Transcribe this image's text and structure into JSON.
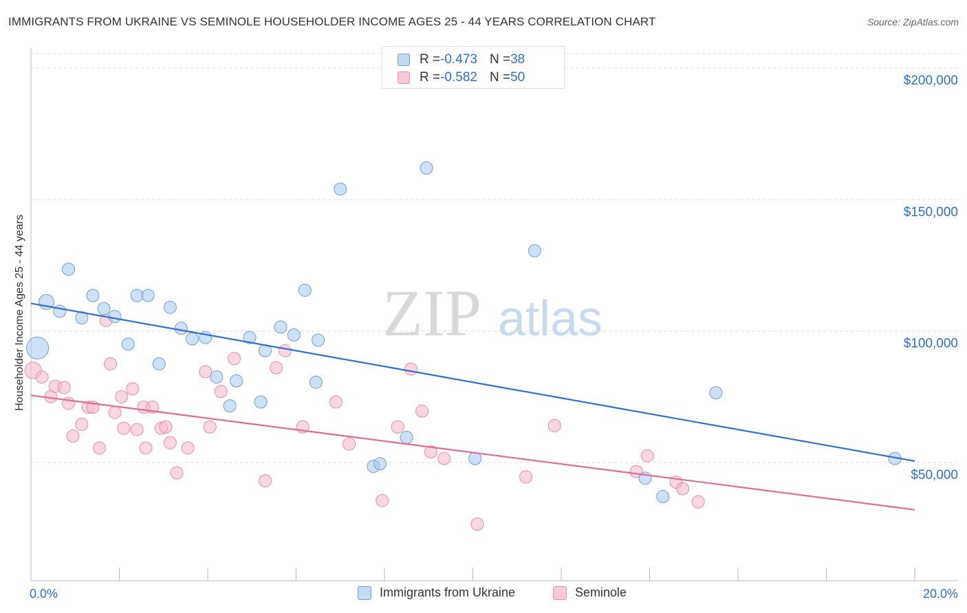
{
  "title": "IMMIGRANTS FROM UKRAINE VS SEMINOLE HOUSEHOLDER INCOME AGES 25 - 44 YEARS CORRELATION CHART",
  "source": "Source: ZipAtlas.com",
  "watermark": {
    "zip": "ZIP",
    "atlas": "atlas"
  },
  "legend": {
    "rows": [
      {
        "r_label": "R = ",
        "r_value": "-0.473",
        "n_label": "N = ",
        "n_value": "38"
      },
      {
        "r_label": "R = ",
        "r_value": "-0.582",
        "n_label": "N = ",
        "n_value": "50"
      }
    ]
  },
  "colors": {
    "ukraine_fill": "#a8c8f0",
    "ukraine_stroke": "#6a9fe0",
    "ukraine_line": "#2e6fcf",
    "seminole_fill": "#f7b6ca",
    "seminole_stroke": "#ec8aa8",
    "seminole_line": "#e06b95",
    "tick_label": "#2e6fcf",
    "grid": "#dddddd"
  },
  "chart_data": {
    "type": "scatter",
    "title": "IMMIGRANTS FROM UKRAINE VS SEMINOLE HOUSEHOLDER INCOME AGES 25 - 44 YEARS CORRELATION CHART",
    "xlabel": "",
    "ylabel": "Householder Income Ages 25 - 44 years",
    "xlim": [
      0,
      20
    ],
    "ylim": [
      5000,
      210000
    ],
    "x_tick_labels": [
      "0.0%",
      "20.0%"
    ],
    "y_ticks": [
      50000,
      100000,
      150000,
      200000
    ],
    "y_tick_labels": [
      "$50,000",
      "$100,000",
      "$150,000",
      "$200,000"
    ],
    "grid": true,
    "legend_position": "top-center",
    "series": [
      {
        "name": "Immigrants from Ukraine",
        "R": -0.473,
        "N": 38,
        "trend": [
          [
            0,
            110500
          ],
          [
            20,
            50500
          ]
        ],
        "points": [
          [
            0.15,
            93500,
            16
          ],
          [
            0.35,
            111000,
            11
          ],
          [
            0.65,
            107500,
            9
          ],
          [
            0.85,
            123500,
            9
          ],
          [
            1.15,
            105000,
            9
          ],
          [
            1.4,
            113500,
            9
          ],
          [
            1.65,
            108500,
            9
          ],
          [
            1.9,
            105500,
            9
          ],
          [
            2.2,
            95000,
            9
          ],
          [
            2.4,
            113500,
            9
          ],
          [
            2.65,
            113500,
            9
          ],
          [
            2.9,
            87500,
            9
          ],
          [
            3.15,
            109000,
            9
          ],
          [
            3.4,
            101000,
            9
          ],
          [
            3.65,
            97000,
            9
          ],
          [
            3.95,
            97500,
            9
          ],
          [
            4.2,
            82500,
            9
          ],
          [
            4.5,
            71500,
            9
          ],
          [
            4.65,
            81000,
            9
          ],
          [
            4.95,
            97500,
            9
          ],
          [
            5.2,
            73000,
            9
          ],
          [
            5.3,
            92500,
            9
          ],
          [
            5.65,
            101500,
            9
          ],
          [
            5.95,
            98500,
            9
          ],
          [
            6.2,
            115500,
            9
          ],
          [
            6.45,
            80500,
            9
          ],
          [
            6.5,
            96500,
            9
          ],
          [
            7.0,
            154000,
            9
          ],
          [
            7.75,
            48500,
            9
          ],
          [
            7.9,
            49500,
            9
          ],
          [
            8.5,
            59500,
            9
          ],
          [
            8.95,
            162000,
            9
          ],
          [
            10.05,
            51500,
            9
          ],
          [
            11.4,
            130500,
            9
          ],
          [
            13.9,
            44000,
            9
          ],
          [
            14.3,
            37000,
            9
          ],
          [
            15.5,
            76500,
            9
          ],
          [
            19.55,
            51500,
            9
          ]
        ]
      },
      {
        "name": "Seminole",
        "R": -0.582,
        "N": 50,
        "trend": [
          [
            0,
            75500
          ],
          [
            20,
            32000
          ]
        ],
        "points": [
          [
            0.05,
            85000,
            12
          ],
          [
            0.25,
            82500,
            9
          ],
          [
            0.45,
            75000,
            9
          ],
          [
            0.55,
            79000,
            9
          ],
          [
            0.75,
            78500,
            9
          ],
          [
            0.85,
            72500,
            9
          ],
          [
            0.95,
            60000,
            9
          ],
          [
            1.15,
            64500,
            9
          ],
          [
            1.3,
            71000,
            9
          ],
          [
            1.4,
            71000,
            9
          ],
          [
            1.55,
            55500,
            9
          ],
          [
            1.7,
            104000,
            9
          ],
          [
            1.8,
            87500,
            9
          ],
          [
            1.9,
            69000,
            9
          ],
          [
            2.05,
            75000,
            9
          ],
          [
            2.1,
            63000,
            9
          ],
          [
            2.3,
            78000,
            9
          ],
          [
            2.4,
            62500,
            9
          ],
          [
            2.55,
            71000,
            9
          ],
          [
            2.6,
            55500,
            9
          ],
          [
            2.75,
            71000,
            9
          ],
          [
            2.95,
            63000,
            9
          ],
          [
            3.05,
            63500,
            9
          ],
          [
            3.15,
            57500,
            9
          ],
          [
            3.3,
            46000,
            9
          ],
          [
            3.55,
            55500,
            9
          ],
          [
            3.95,
            84500,
            9
          ],
          [
            4.05,
            63500,
            9
          ],
          [
            4.3,
            77000,
            9
          ],
          [
            4.6,
            89500,
            9
          ],
          [
            5.3,
            43000,
            9
          ],
          [
            5.55,
            86000,
            9
          ],
          [
            5.75,
            92500,
            9
          ],
          [
            6.15,
            63500,
            9
          ],
          [
            6.9,
            73000,
            9
          ],
          [
            7.2,
            57000,
            9
          ],
          [
            7.95,
            35500,
            9
          ],
          [
            8.3,
            63500,
            9
          ],
          [
            8.6,
            85500,
            9
          ],
          [
            8.85,
            69500,
            9
          ],
          [
            9.05,
            54000,
            9
          ],
          [
            9.35,
            51500,
            9
          ],
          [
            10.1,
            26500,
            9
          ],
          [
            11.2,
            44500,
            9
          ],
          [
            11.85,
            64000,
            9
          ],
          [
            13.7,
            46500,
            9
          ],
          [
            13.95,
            52500,
            9
          ],
          [
            14.6,
            42500,
            9
          ],
          [
            14.75,
            40000,
            9
          ],
          [
            15.1,
            35000,
            9
          ]
        ]
      }
    ]
  }
}
